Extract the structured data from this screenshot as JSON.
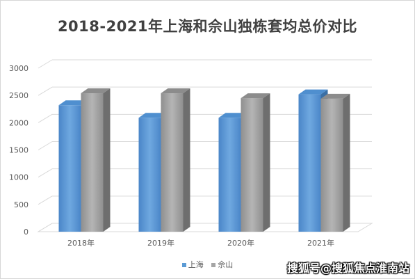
{
  "chart_data": {
    "type": "bar",
    "title": "2018-2021年上海和佘山独栋套均总价对比",
    "categories": [
      "2018年",
      "2019年",
      "2020年",
      "2021年"
    ],
    "series": [
      {
        "name": "上海",
        "values": [
          2320,
          2090,
          2090,
          2520
        ],
        "color": "#5b9bd5"
      },
      {
        "name": "佘山",
        "values": [
          2540,
          2540,
          2450,
          2440
        ],
        "color": "#a5a5a5"
      }
    ],
    "yticks": [
      0,
      500,
      1000,
      1500,
      2000,
      2500,
      3000
    ],
    "ylim": [
      0,
      3000
    ],
    "grid": true,
    "legend_position": "bottom",
    "three_d": true
  },
  "watermark": "搜狐号@搜狐焦点淮南站"
}
